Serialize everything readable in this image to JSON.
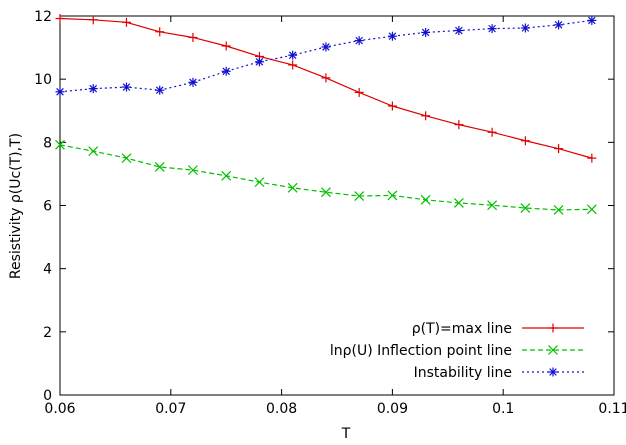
{
  "chart_data": {
    "type": "line",
    "title": "",
    "xlabel": "T",
    "ylabel": "Resistivity ρ(Uc(T),T)",
    "xlim": [
      0.06,
      0.11
    ],
    "ylim": [
      0,
      12
    ],
    "grid": false,
    "legend_position": "bottom-right",
    "x_ticks": [
      0.06,
      0.07,
      0.08,
      0.09,
      0.1,
      0.11
    ],
    "x_tick_labels": [
      "0.06",
      "0.07",
      "0.08",
      "0.09",
      "0.1",
      "0.11"
    ],
    "y_ticks": [
      0,
      2,
      4,
      6,
      8,
      10,
      12
    ],
    "y_tick_labels": [
      "0",
      "2",
      "4",
      "6",
      "8",
      "10",
      "12"
    ],
    "x": [
      0.06,
      0.063,
      0.066,
      0.069,
      0.072,
      0.075,
      0.078,
      0.081,
      0.084,
      0.087,
      0.09,
      0.093,
      0.096,
      0.099,
      0.102,
      0.105,
      0.108
    ],
    "series": [
      {
        "name": "ρ(T)=max line",
        "color": "#e00000",
        "marker": "plus",
        "dash": "solid",
        "values": [
          11.92,
          11.88,
          11.8,
          11.5,
          11.32,
          11.05,
          10.72,
          10.45,
          10.04,
          9.58,
          9.15,
          8.84,
          8.56,
          8.32,
          8.05,
          7.8,
          7.5
        ]
      },
      {
        "name": "lnρ(U) Inflection point line",
        "color": "#00c000",
        "marker": "cross",
        "dash": "dashed",
        "values": [
          7.92,
          7.72,
          7.5,
          7.22,
          7.12,
          6.94,
          6.74,
          6.56,
          6.42,
          6.3,
          6.32,
          6.18,
          6.08,
          6.01,
          5.92,
          5.86,
          5.88
        ]
      },
      {
        "name": "Instability line",
        "color": "#1010d0",
        "marker": "asterisk",
        "dash": "dotted",
        "values": [
          9.6,
          9.7,
          9.75,
          9.65,
          9.9,
          10.25,
          10.55,
          10.76,
          11.02,
          11.22,
          11.36,
          11.48,
          11.54,
          11.6,
          11.62,
          11.72,
          11.86
        ]
      }
    ]
  }
}
